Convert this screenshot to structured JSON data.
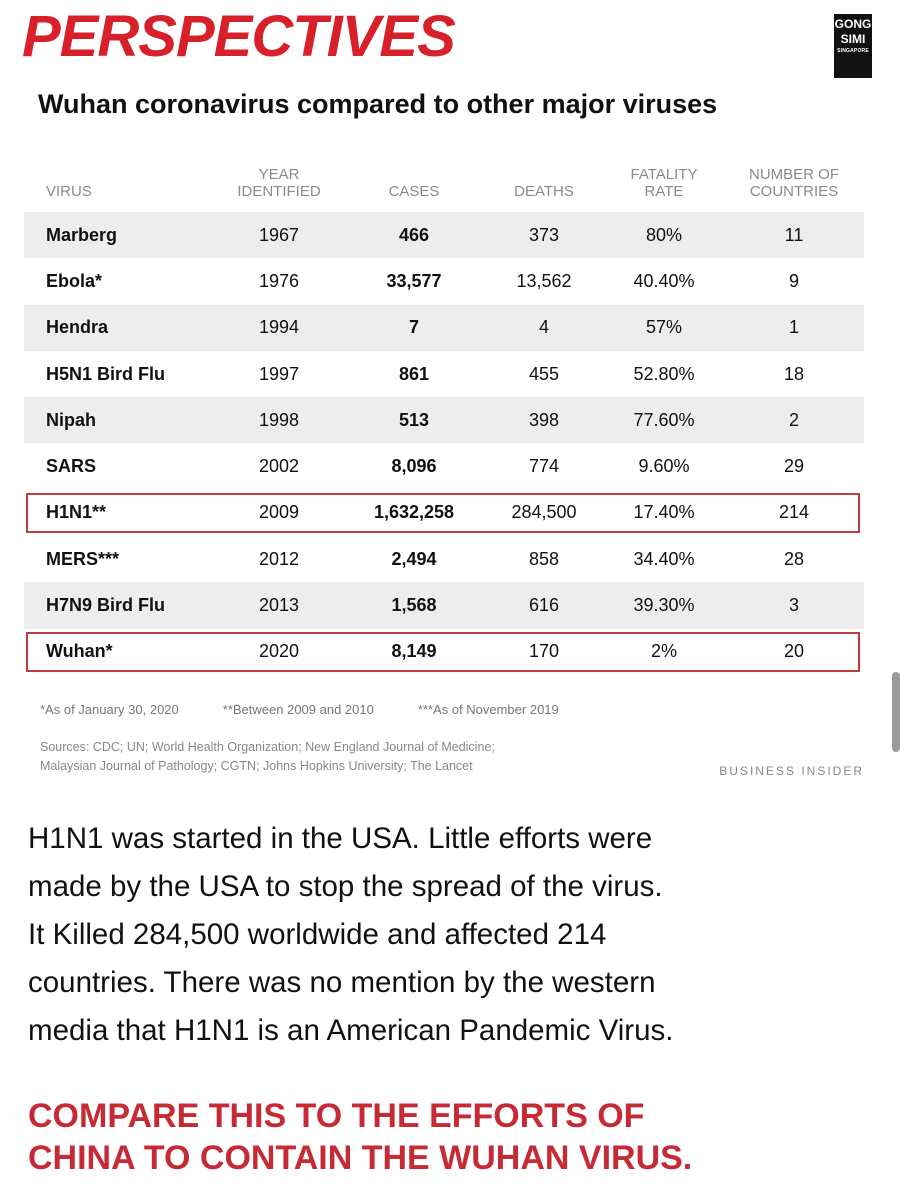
{
  "header": {
    "headline": "PERSPECTIVES",
    "subtitle": "Wuhan coronavirus compared to other major viruses",
    "logo_line1": "GONG",
    "logo_line2": "SIMI",
    "logo_line3": "SINGAPORE"
  },
  "table": {
    "columns": [
      "VIRUS",
      "YEAR IDENTIFIED",
      "CASES",
      "DEATHS",
      "FATALITY RATE",
      "NUMBER OF COUNTRIES"
    ],
    "rows": [
      [
        "Marberg",
        "1967",
        "466",
        "373",
        "80%",
        "11"
      ],
      [
        "Ebola*",
        "1976",
        "33,577",
        "13,562",
        "40.40%",
        "9"
      ],
      [
        "Hendra",
        "1994",
        "7",
        "4",
        "57%",
        "1"
      ],
      [
        "H5N1 Bird Flu",
        "1997",
        "861",
        "455",
        "52.80%",
        "18"
      ],
      [
        "Nipah",
        "1998",
        "513",
        "398",
        "77.60%",
        "2"
      ],
      [
        "SARS",
        "2002",
        "8,096",
        "774",
        "9.60%",
        "29"
      ],
      [
        "H1N1**",
        "2009",
        "1,632,258",
        "284,500",
        "17.40%",
        "214"
      ],
      [
        "MERS***",
        "2012",
        "2,494",
        "858",
        "34.40%",
        "28"
      ],
      [
        "H7N9 Bird Flu",
        "2013",
        "1,568",
        "616",
        "39.30%",
        "3"
      ],
      [
        "Wuhan*",
        "2020",
        "8,149",
        "170",
        "2%",
        "20"
      ]
    ],
    "highlight_color": "#c23b3b"
  },
  "footnotes": {
    "note1": "*As of January 30, 2020",
    "note2": "**Between 2009 and 2010",
    "note3": "***As of November 2019",
    "sources_line1": "Sources: CDC; UN; World Health Organization; New England Journal of Medicine;",
    "sources_line2": "Malaysian Journal of Pathology; CGTN; Johns Hopkins University; The Lancet",
    "brand": "BUSINESS INSIDER"
  },
  "commentary": {
    "line1": "H1N1 was started in the USA. Little efforts were",
    "line2": "made by the USA to stop the spread of the virus.",
    "line3": "It Killed 284,500 worldwide and affected 214",
    "line4": "countries. There was no mention by the western",
    "line5": "media that H1N1 is an American Pandemic Virus."
  },
  "call_to_action": {
    "line1": "COMPARE THIS TO THE EFFORTS OF",
    "line2": "CHINA TO CONTAIN THE WUHAN VIRUS."
  },
  "colors": {
    "headline": "#d8202a",
    "cta": "#c62b35"
  }
}
